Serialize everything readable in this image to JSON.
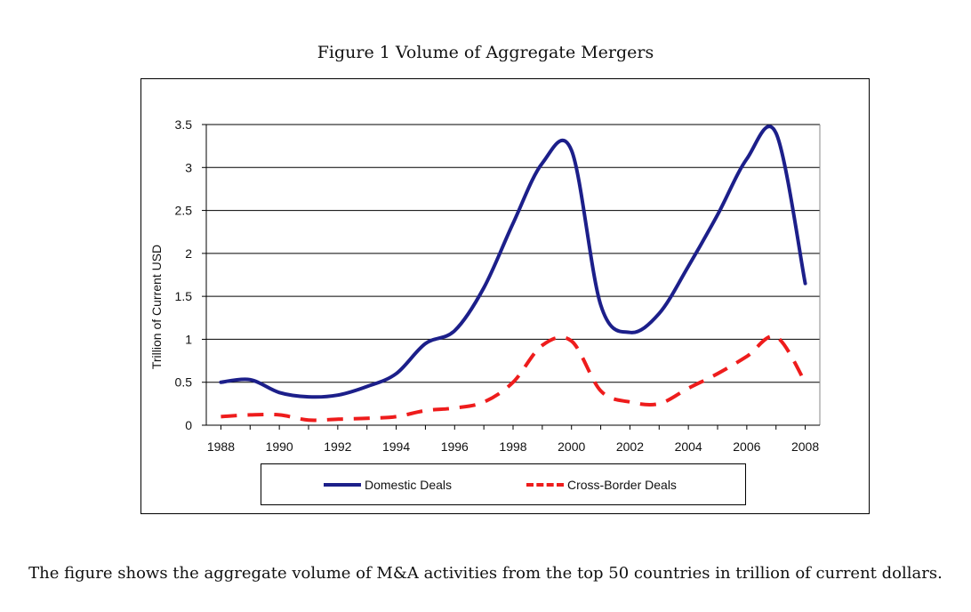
{
  "figure_title": "Figure 1 Volume of Aggregate Mergers",
  "caption": "The figure shows the aggregate volume of M&A activities from the top 50 countries in trillion of current dollars.",
  "colors": {
    "domestic": "#1c1f8a",
    "crossborder": "#ee1c1c"
  },
  "chart_data": {
    "type": "line",
    "ylabel": "Trillion of Current USD",
    "xlabel": "",
    "ylim": [
      0,
      3.5
    ],
    "yticks": [
      "0",
      "0.5",
      "1",
      "1.5",
      "2",
      "2.5",
      "3",
      "3.5"
    ],
    "xticks": [
      "1988",
      "1990",
      "1992",
      "1994",
      "1996",
      "1998",
      "2000",
      "2002",
      "2004",
      "2006",
      "2008"
    ],
    "xlim": [
      1987.5,
      2008.5
    ],
    "grid": true,
    "legend_position": "bottom",
    "series": [
      {
        "name": "Domestic Deals",
        "x": [
          1988,
          1989,
          1990,
          1991,
          1992,
          1993,
          1994,
          1995,
          1996,
          1997,
          1998,
          1999,
          2000,
          2001,
          2002,
          2003,
          2004,
          2005,
          2006,
          2007,
          2008
        ],
        "values": [
          0.5,
          0.53,
          0.38,
          0.33,
          0.35,
          0.45,
          0.6,
          0.95,
          1.1,
          1.6,
          2.35,
          3.05,
          3.2,
          1.4,
          1.08,
          1.3,
          1.85,
          2.45,
          3.1,
          3.4,
          1.65
        ]
      },
      {
        "name": "Cross-Border Deals",
        "x": [
          1988,
          1989,
          1990,
          1991,
          1992,
          1993,
          1994,
          1995,
          1996,
          1997,
          1998,
          1999,
          2000,
          2001,
          2002,
          2003,
          2004,
          2005,
          2006,
          2007,
          2008
        ],
        "values": [
          0.1,
          0.12,
          0.12,
          0.06,
          0.07,
          0.08,
          0.1,
          0.17,
          0.2,
          0.27,
          0.5,
          0.93,
          0.98,
          0.4,
          0.27,
          0.25,
          0.43,
          0.6,
          0.8,
          1.03,
          0.5
        ]
      }
    ]
  }
}
